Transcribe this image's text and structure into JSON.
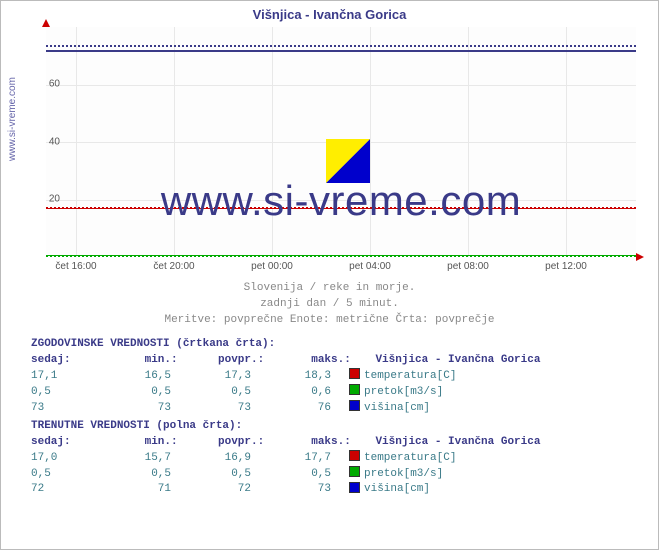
{
  "title": "Višnjica - Ivančna Gorica",
  "watermark": "www.si-vreme.com",
  "sidebar": "www.si-vreme.com",
  "chart": {
    "type": "line",
    "ylim": [
      0,
      80
    ],
    "yticks": [
      20,
      40,
      60
    ],
    "xticks": [
      "čet 16:00",
      "čet 20:00",
      "pet 00:00",
      "pet 04:00",
      "pet 08:00",
      "pet 12:00"
    ],
    "background_color": "#fdfdfd",
    "grid_color": "#e8e8e8",
    "series": {
      "visina_dotted": {
        "value": 73.5,
        "color": "#3a3a88",
        "style": "dotted"
      },
      "visina_solid": {
        "value": 72.0,
        "color": "#3a3a88",
        "style": "solid"
      },
      "temp_dotted": {
        "value": 17.3,
        "color": "#cc0000",
        "style": "dotted"
      },
      "temp_solid": {
        "value": 16.9,
        "color": "#cc0000",
        "style": "solid"
      },
      "pretok_dotted": {
        "value": 0.5,
        "color": "#00aa00",
        "style": "dotted"
      },
      "pretok_solid": {
        "value": 0.5,
        "color": "#00aa00",
        "style": "solid"
      }
    }
  },
  "subtitle": {
    "line1": "Slovenija / reke in morje.",
    "line2": "zadnji dan / 5 minut.",
    "line3": "Meritve: povprečne  Enote: metrične  Črta: povprečje"
  },
  "sections": {
    "historic": {
      "header": "ZGODOVINSKE VREDNOSTI (črtkana črta):",
      "cols": {
        "sedaj": "sedaj:",
        "min": "min.:",
        "povpr": "povpr.:",
        "maks": "maks.:",
        "station": "Višnjica - Ivančna Gorica"
      },
      "rows": [
        {
          "sedaj": "17,1",
          "min": "16,5",
          "povpr": "17,3",
          "maks": "18,3",
          "color": "#cc0000",
          "metric": "temperatura[C]"
        },
        {
          "sedaj": "0,5",
          "min": "0,5",
          "povpr": "0,5",
          "maks": "0,6",
          "color": "#00aa00",
          "metric": "pretok[m3/s]"
        },
        {
          "sedaj": "73",
          "min": "73",
          "povpr": "73",
          "maks": "76",
          "color": "#0000cc",
          "metric": "višina[cm]"
        }
      ]
    },
    "current": {
      "header": "TRENUTNE VREDNOSTI (polna črta):",
      "cols": {
        "sedaj": "sedaj:",
        "min": "min.:",
        "povpr": "povpr.:",
        "maks": "maks.:",
        "station": "Višnjica - Ivančna Gorica"
      },
      "rows": [
        {
          "sedaj": "17,0",
          "min": "15,7",
          "povpr": "16,9",
          "maks": "17,7",
          "color": "#cc0000",
          "metric": "temperatura[C]"
        },
        {
          "sedaj": "0,5",
          "min": "0,5",
          "povpr": "0,5",
          "maks": "0,5",
          "color": "#00aa00",
          "metric": "pretok[m3/s]"
        },
        {
          "sedaj": "72",
          "min": "71",
          "povpr": "72",
          "maks": "73",
          "color": "#0000cc",
          "metric": "višina[cm]"
        }
      ]
    }
  }
}
